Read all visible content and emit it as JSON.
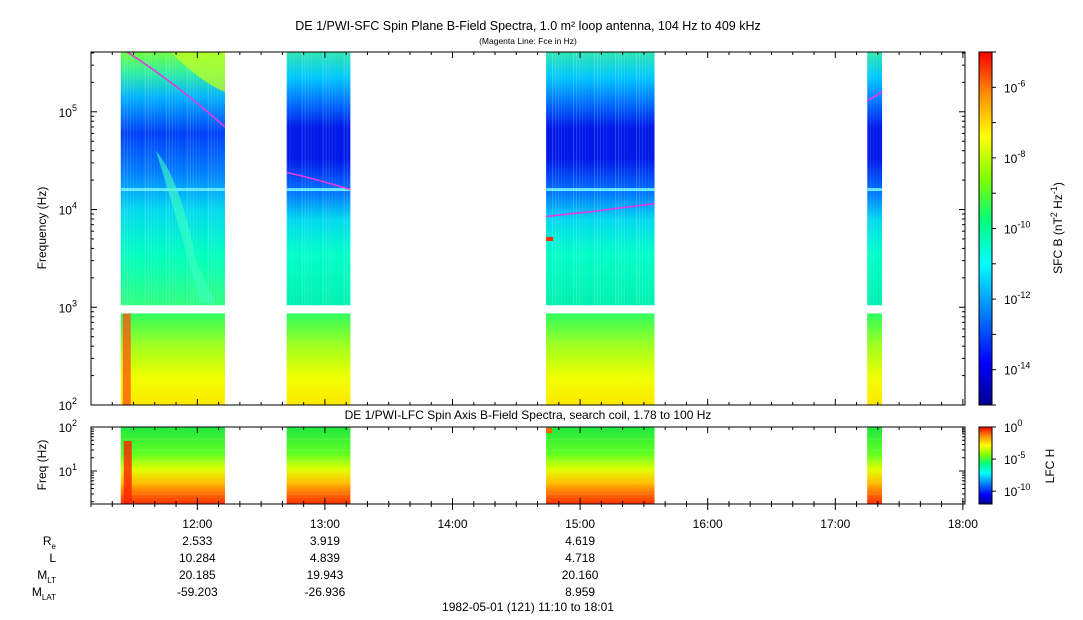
{
  "chart_data": [
    {
      "type": "heatmap",
      "title": "DE 1/PWI-SFC  Spin Plane B-Field Spectra, 1.0 m² loop antenna, 104 Hz to 409 kHz",
      "subtitle": "(Magenta Line: Fce in Hz)",
      "ylabel": "Frequency (Hz)",
      "yscale": "log",
      "ylim": [
        100,
        409000
      ],
      "yticks": [
        {
          "value": 100,
          "label": "10",
          "exp": "2"
        },
        {
          "value": 1000,
          "label": "10",
          "exp": "3"
        },
        {
          "value": 10000,
          "label": "10",
          "exp": "4"
        },
        {
          "value": 100000,
          "label": "10",
          "exp": "5"
        }
      ],
      "colorbar": {
        "label": "SFC B (nT",
        "label_exp": "2",
        "label_mid": " Hz",
        "label_exp2": "-1",
        "label_end": ")",
        "scale": "log",
        "range": [
          1e-15,
          1e-05
        ],
        "ticks": [
          {
            "value": 1e-06,
            "label": "10",
            "exp": "-6"
          },
          {
            "value": 1e-08,
            "label": "10",
            "exp": "-8"
          },
          {
            "value": 1e-10,
            "label": "10",
            "exp": "-10"
          },
          {
            "value": 1e-12,
            "label": "10",
            "exp": "-12"
          },
          {
            "value": 1e-14,
            "label": "10",
            "exp": "-14"
          }
        ]
      },
      "data_segments": [
        {
          "start": "11:24",
          "end": "12:13"
        },
        {
          "start": "12:42",
          "end": "13:12"
        },
        {
          "start": "14:44",
          "end": "15:35"
        },
        {
          "start": "17:15",
          "end": "17:22"
        }
      ],
      "fce_line": [
        {
          "x": [
            "11:27",
            "12:13"
          ],
          "y": [
            409000,
            70000
          ]
        },
        {
          "x": [
            "12:42",
            "13:12"
          ],
          "y": [
            24000,
            16000
          ]
        },
        {
          "x": [
            "14:44",
            "15:35"
          ],
          "y": [
            8500,
            11500
          ]
        },
        {
          "x": [
            "17:15",
            "17:22"
          ],
          "y": [
            130000,
            160000
          ]
        }
      ]
    },
    {
      "type": "heatmap",
      "title": "DE 1/PWI-LFC  Spin Axis B-Field Spectra, search coil, 1.78 to 100 Hz",
      "ylabel": "Freq (Hz)",
      "yscale": "log",
      "ylim": [
        1.78,
        100
      ],
      "yticks": [
        {
          "value": 10,
          "label": "10",
          "exp": "1"
        },
        {
          "value": 100,
          "label": "10",
          "exp": "2"
        }
      ],
      "colorbar": {
        "label": "LFC H",
        "scale": "log",
        "range": [
          1e-12,
          1
        ],
        "ticks": [
          {
            "value": 1,
            "label": "10",
            "exp": "0"
          },
          {
            "value": 1e-05,
            "label": "10",
            "exp": "-5"
          },
          {
            "value": 1e-10,
            "label": "10",
            "exp": "-10"
          }
        ]
      }
    }
  ],
  "x_axis": {
    "range": [
      "11:10",
      "18:01"
    ],
    "ticks": [
      "12:00",
      "13:00",
      "14:00",
      "15:00",
      "16:00",
      "17:00",
      "18:00"
    ]
  },
  "ephemeris": {
    "rows": [
      {
        "label": "R",
        "sub": "e",
        "values": [
          "2.533",
          "3.919",
          "4.619"
        ]
      },
      {
        "label": "L",
        "sub": "",
        "values": [
          "10.284",
          "4.839",
          "4.718"
        ]
      },
      {
        "label": "M",
        "sub": "LT",
        "values": [
          "20.185",
          "19.943",
          "20.160"
        ]
      },
      {
        "label": "M",
        "sub": "LAT",
        "values": [
          "-59.203",
          "-26.936",
          "8.959"
        ]
      }
    ],
    "times": [
      "12:00",
      "13:00",
      "15:00"
    ]
  },
  "footer": "1982-05-01 (121) 11:10 to 18:01",
  "colors": {
    "magenta": "#e23be0",
    "frame": "#000000"
  }
}
